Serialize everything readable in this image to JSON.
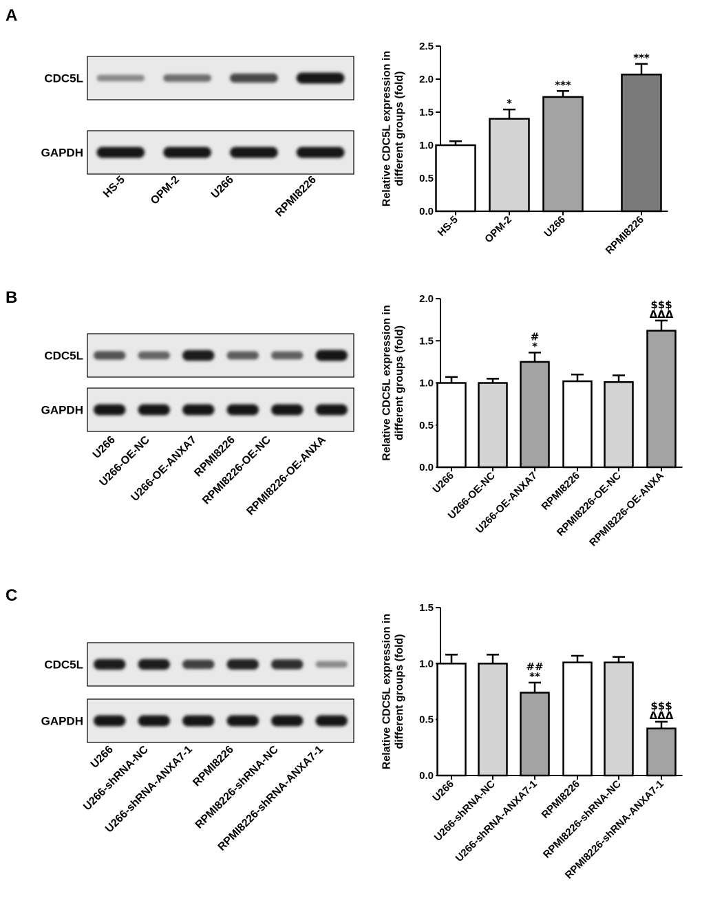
{
  "panels": [
    {
      "letter": "A",
      "blot": {
        "rows": [
          {
            "label": "CDC5L",
            "intensities": [
              0.35,
              0.5,
              0.72,
              1.0
            ]
          },
          {
            "label": "GAPDH",
            "intensities": [
              1.0,
              1.0,
              1.0,
              1.0
            ]
          }
        ],
        "lanes": [
          "HS-5",
          "OPM-2",
          "U266",
          "RPMI8226"
        ]
      }
    },
    {
      "letter": "B",
      "blot": {
        "rows": [
          {
            "label": "CDC5L",
            "intensities": [
              0.65,
              0.55,
              0.95,
              0.6,
              0.58,
              1.0
            ]
          },
          {
            "label": "GAPDH",
            "intensities": [
              1.0,
              1.0,
              1.0,
              1.0,
              1.0,
              1.0
            ]
          }
        ],
        "lanes": [
          "U266",
          "U266-OE-NC",
          "U266-OE-ANXA7",
          "RPMI8226",
          "RPMI8226-OE-NC",
          "RPMI8226-OE-ANXA"
        ]
      }
    },
    {
      "letter": "C",
      "blot": {
        "rows": [
          {
            "label": "CDC5L",
            "intensities": [
              0.95,
              0.95,
              0.75,
              0.92,
              0.85,
              0.35
            ]
          },
          {
            "label": "GAPDH",
            "intensities": [
              1.0,
              1.0,
              1.0,
              1.0,
              1.0,
              1.0
            ]
          }
        ],
        "lanes": [
          "U266",
          "U266-shRNA-NC",
          "U266-shRNA-ANXA7-1",
          "RPMI8226",
          "RPMI8226-shRNA-NC",
          "RPMI8226-shRNA-ANXA7-1"
        ]
      }
    }
  ],
  "chart_data": [
    {
      "type": "bar",
      "ylabel": "Relative CDC5L expression in different groups (fold)",
      "categories": [
        "HS-5",
        "OPM-2",
        "U266",
        "RPMI8226"
      ],
      "values": [
        1.0,
        1.4,
        1.73,
        2.07
      ],
      "errors": [
        0.06,
        0.14,
        0.09,
        0.16
      ],
      "annotations": [
        [],
        [
          "*"
        ],
        [
          "***"
        ],
        [
          "***"
        ]
      ],
      "colors": [
        "#ffffff",
        "#d3d3d3",
        "#a3a3a3",
        "#7a7a7a"
      ],
      "ylim": [
        0,
        2.5
      ],
      "yticks": [
        0.0,
        0.5,
        1.0,
        1.5,
        2.0,
        2.5
      ]
    },
    {
      "type": "bar",
      "ylabel": "Relative CDC5L expression in different groups (fold)",
      "categories": [
        "U266",
        "U266-OE-NC",
        "U266-OE-ANXA7",
        "RPMI8226",
        "RPMI8226-OE-NC",
        "RPMI8226-OE-ANXA"
      ],
      "values": [
        1.0,
        1.0,
        1.25,
        1.02,
        1.01,
        1.62
      ],
      "errors": [
        0.07,
        0.05,
        0.11,
        0.08,
        0.08,
        0.12
      ],
      "annotations": [
        [],
        [],
        [
          "#",
          "*"
        ],
        [],
        [],
        [
          "$$$",
          "ΔΔΔ"
        ]
      ],
      "colors": [
        "#ffffff",
        "#d3d3d3",
        "#a3a3a3",
        "#ffffff",
        "#d3d3d3",
        "#a3a3a3"
      ],
      "ylim": [
        0,
        2.0
      ],
      "yticks": [
        0.0,
        0.5,
        1.0,
        1.5,
        2.0
      ]
    },
    {
      "type": "bar",
      "ylabel": "Relative CDC5L expression in different groups (fold)",
      "categories": [
        "U266",
        "U266-shRNA-NC",
        "U266-shRNA-ANXA7-1",
        "RPMI8226",
        "RPMI8226-shRNA-NC",
        "RPMI8226-shRNA-ANXA7-1"
      ],
      "values": [
        1.0,
        1.0,
        0.74,
        1.01,
        1.01,
        0.42
      ],
      "errors": [
        0.08,
        0.08,
        0.09,
        0.06,
        0.05,
        0.06
      ],
      "annotations": [
        [],
        [],
        [
          "##",
          "**"
        ],
        [],
        [],
        [
          "$$$",
          "ΔΔΔ"
        ]
      ],
      "colors": [
        "#ffffff",
        "#d3d3d3",
        "#a3a3a3",
        "#ffffff",
        "#d3d3d3",
        "#a3a3a3"
      ],
      "ylim": [
        0,
        1.5
      ],
      "yticks": [
        0.0,
        0.5,
        1.0,
        1.5
      ]
    }
  ]
}
